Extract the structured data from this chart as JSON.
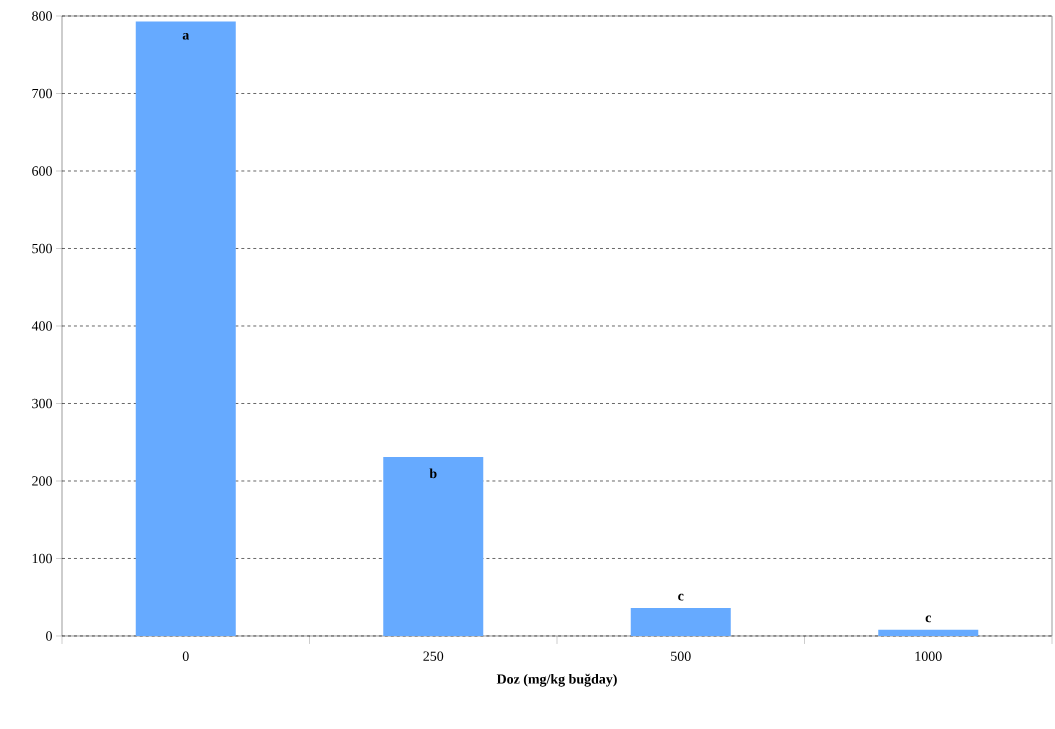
{
  "chart_data": {
    "type": "bar",
    "xlabel": "Doz (mg/kg buğday)",
    "categories": [
      "0",
      "250",
      "500",
      "1000"
    ],
    "values": [
      793,
      231,
      36,
      8
    ],
    "color": "#66aaff",
    "ylim": [
      0,
      800
    ],
    "yticks": [
      0,
      100,
      200,
      300,
      400,
      500,
      600,
      700,
      800
    ],
    "grid": "y",
    "annotations": [
      "a",
      "b",
      "c",
      "c"
    ]
  }
}
